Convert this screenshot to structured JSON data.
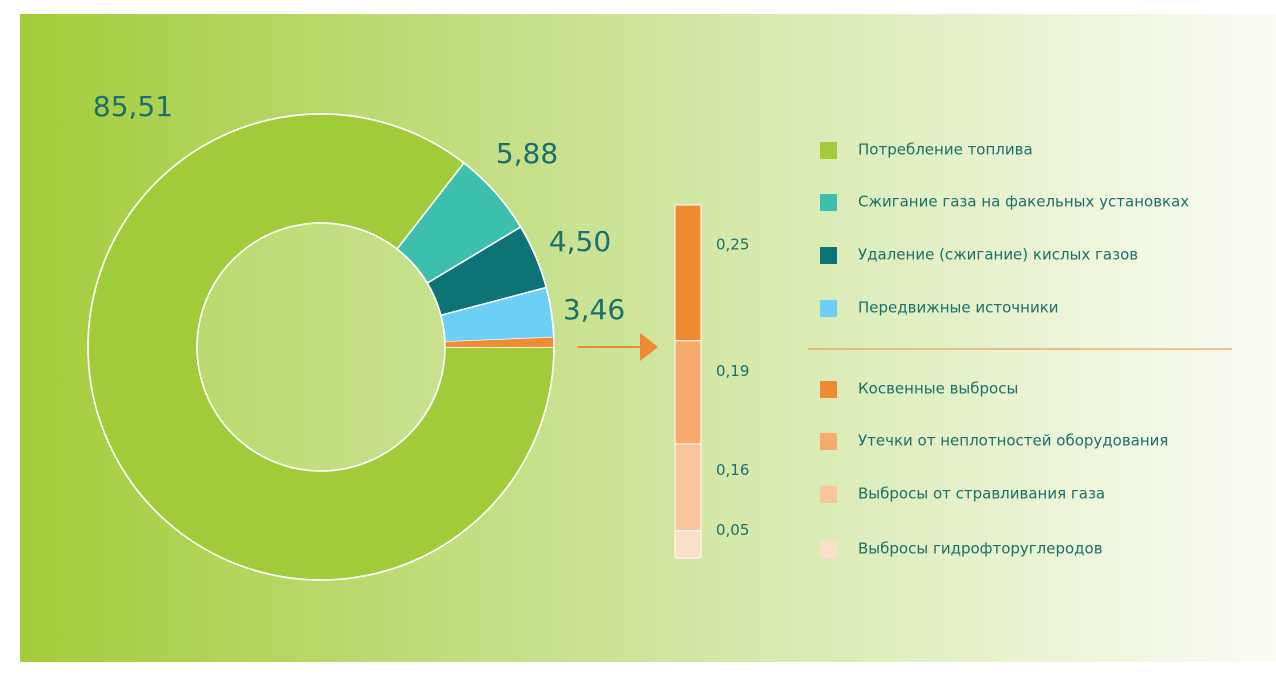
{
  "chart_data": {
    "type": "donut",
    "categories": [
      "Потребление топлива",
      "Сжигание газа на факельных установках",
      "Удаление (сжигание) кислых газов",
      "Передвижные источники",
      "Косвенные выбросы",
      "Утечки от неплотностей оборудования",
      "Выбросы от стравливания газа",
      "Выбросы гидрофторуглеродов"
    ],
    "values": [
      85.51,
      5.88,
      4.5,
      3.46,
      0.25,
      0.19,
      0.16,
      0.05
    ],
    "value_labels": [
      "85,51",
      "5,88",
      "4,50",
      "3,46",
      "0,25",
      "0,19",
      "0,16",
      "0,05"
    ],
    "colors": [
      "#a2cb3a",
      "#3dbfad",
      "#0d7377",
      "#6dcff6",
      "#f08a30",
      "#f6ab6c",
      "#f9c59a",
      "#fbdfc8"
    ],
    "breakout_color": "#f08a30"
  }
}
